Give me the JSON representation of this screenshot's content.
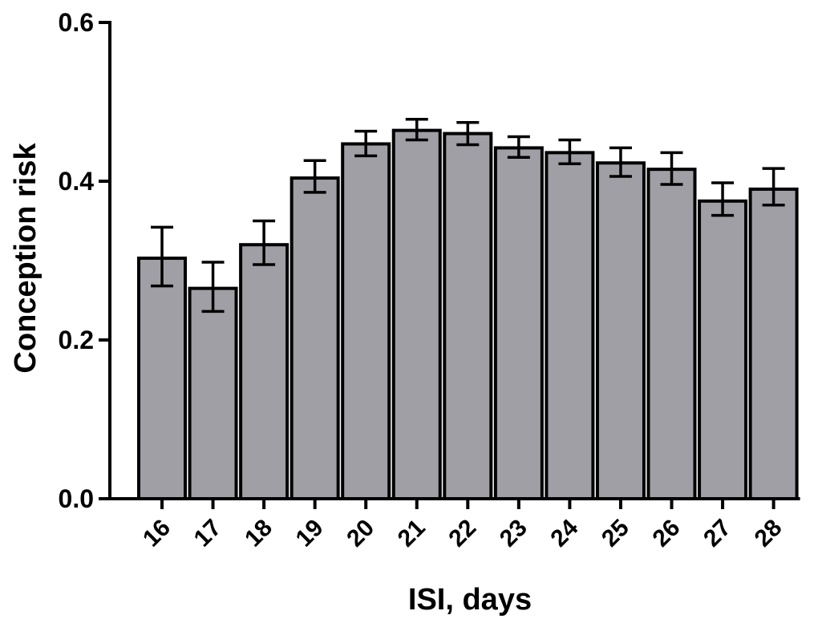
{
  "chart_data": {
    "type": "bar",
    "title": "",
    "xlabel": "ISI, days",
    "ylabel": "Conception risk",
    "categories": [
      "16",
      "17",
      "18",
      "19",
      "20",
      "21",
      "22",
      "23",
      "24",
      "25",
      "26",
      "27",
      "28"
    ],
    "series": [
      {
        "values": [
          0.303,
          0.265,
          0.32,
          0.404,
          0.447,
          0.464,
          0.46,
          0.442,
          0.436,
          0.423,
          0.415,
          0.375,
          0.39
        ],
        "error_upper": [
          0.342,
          0.298,
          0.35,
          0.426,
          0.463,
          0.478,
          0.474,
          0.456,
          0.452,
          0.442,
          0.436,
          0.398,
          0.416
        ],
        "error_lower": [
          0.268,
          0.236,
          0.295,
          0.386,
          0.432,
          0.452,
          0.446,
          0.43,
          0.422,
          0.406,
          0.396,
          0.357,
          0.37
        ]
      }
    ],
    "ylim": [
      0,
      0.6
    ],
    "yticks": [
      "0.0",
      "0.2",
      "0.4",
      "0.6"
    ],
    "grid": false,
    "legend": "none",
    "colors": {
      "bar_fill": "#a09fa5",
      "bar_stroke": "#000000"
    }
  }
}
